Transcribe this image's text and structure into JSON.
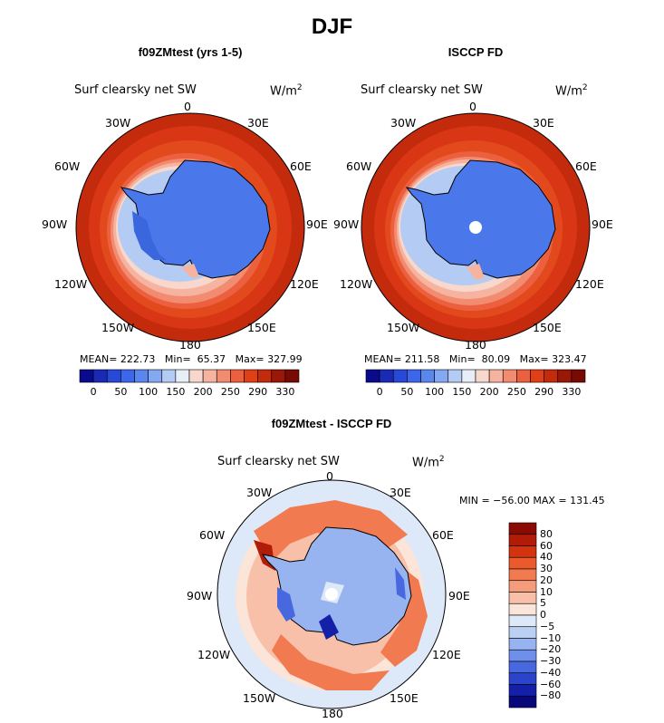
{
  "figure": {
    "title": "DJF"
  },
  "panels": [
    {
      "id": "model",
      "title": "f09ZMtest (yrs 1-5)",
      "variable": "Surf clearsky net SW",
      "units_base": "W/m",
      "units_exp": "2",
      "stats": {
        "mean_label": "MEAN=",
        "mean": "222.73",
        "min_label": "Min=",
        "min": "65.37",
        "max_label": "Max=",
        "max": "327.99"
      },
      "colorbar": {
        "ticks": [
          "0",
          "50",
          "100",
          "150",
          "200",
          "250",
          "290",
          "330"
        ],
        "colors": [
          "#0a0a8c",
          "#1a2ab4",
          "#2848d8",
          "#3e66ea",
          "#5a86f0",
          "#86a8f2",
          "#b4ccf4",
          "#e8eef8",
          "#f8d8cc",
          "#f6b4a0",
          "#f28c70",
          "#ec6040",
          "#e04018",
          "#c42a0c",
          "#9a1808",
          "#780a04"
        ]
      }
    },
    {
      "id": "obs",
      "title": "ISCCP FD",
      "variable": "Surf clearsky net SW",
      "units_base": "W/m",
      "units_exp": "2",
      "stats": {
        "mean_label": "MEAN=",
        "mean": "211.58",
        "min_label": "Min=",
        "min": "80.09",
        "max_label": "Max=",
        "max": "323.47"
      },
      "colorbar": {
        "ticks": [
          "0",
          "50",
          "100",
          "150",
          "200",
          "250",
          "290",
          "330"
        ],
        "colors": [
          "#0a0a8c",
          "#1a2ab4",
          "#2848d8",
          "#3e66ea",
          "#5a86f0",
          "#86a8f2",
          "#b4ccf4",
          "#e8eef8",
          "#f8d8cc",
          "#f6b4a0",
          "#f28c70",
          "#ec6040",
          "#e04018",
          "#c42a0c",
          "#9a1808",
          "#780a04"
        ]
      }
    },
    {
      "id": "diff",
      "title": "f09ZMtest - ISCCP FD",
      "variable": "Surf clearsky net SW",
      "units_base": "W/m",
      "units_exp": "2",
      "stats_text": "MIN = −56.00 MAX = 131.45",
      "colorbar": {
        "ticks": [
          "80",
          "60",
          "40",
          "30",
          "20",
          "10",
          "5",
          "0",
          "−5",
          "−10",
          "−20",
          "−30",
          "−40",
          "−60",
          "−80"
        ],
        "colors": [
          "#8c0a04",
          "#b01c08",
          "#d23410",
          "#ea5a2c",
          "#f27a50",
          "#f49c7c",
          "#f8c0a8",
          "#fbe4d8",
          "#dde8f8",
          "#bcd0f4",
          "#98b4f0",
          "#6e90ea",
          "#4868e0",
          "#2a44cc",
          "#1420a8",
          "#08087c"
        ]
      }
    }
  ],
  "longitude_labels": [
    "0",
    "30E",
    "60E",
    "90E",
    "120E",
    "150E",
    "180",
    "150W",
    "120W",
    "90W",
    "60W",
    "30W"
  ],
  "map_colors": {
    "land_blue": "#4a78ea",
    "ocean_far": "#c42a0c",
    "ocean_mid": "#e04018",
    "ice_edge": "#f6b4a0",
    "coast": "#000000"
  }
}
